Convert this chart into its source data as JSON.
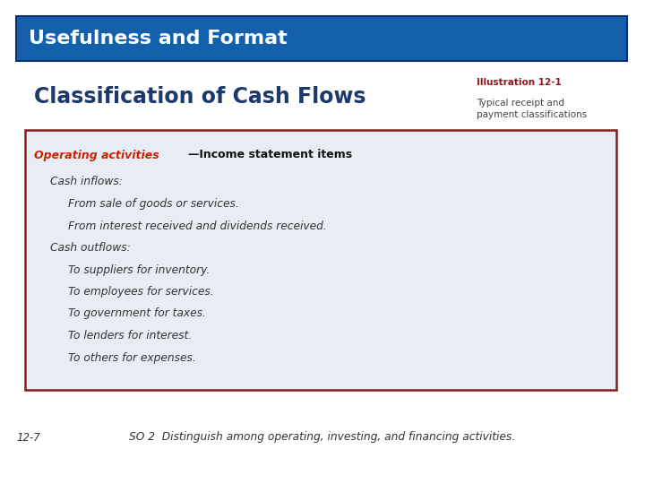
{
  "title_bar_text": "Usefulness and Format",
  "title_bar_color": "#1560AC",
  "title_bar_text_color": "#FFFFFF",
  "section_title": "Classification of Cash Flows",
  "section_title_color": "#1B3A6B",
  "illus_label": "Illustration 12-1",
  "illus_label_color": "#8B1A1A",
  "illus_desc": "Typical receipt and\npayment classifications",
  "illus_desc_color": "#444444",
  "box_bg_color": "#E8ECF5",
  "box_border_color": "#8B1A1A",
  "operating_red": "Operating activities",
  "operating_rest": "—Income statement items",
  "operating_red_color": "#CC2200",
  "operating_rest_color": "#111111",
  "body_color": "#333333",
  "body_lines": [
    {
      "text": "Cash inflows:",
      "indent": 1
    },
    {
      "text": "From sale of goods or services.",
      "indent": 2
    },
    {
      "text": "From interest received and dividends received.",
      "indent": 2
    },
    {
      "text": "Cash outflows:",
      "indent": 1
    },
    {
      "text": "To suppliers for inventory.",
      "indent": 2
    },
    {
      "text": "To employees for services.",
      "indent": 2
    },
    {
      "text": "To government for taxes.",
      "indent": 2
    },
    {
      "text": "To lenders for interest.",
      "indent": 2
    },
    {
      "text": "To others for expenses.",
      "indent": 2
    }
  ],
  "footer_left": "12-7",
  "footer_right": "SO 2  Distinguish among operating, investing, and financing activities.",
  "footer_color": "#333333",
  "bg_color": "#FFFFFF"
}
